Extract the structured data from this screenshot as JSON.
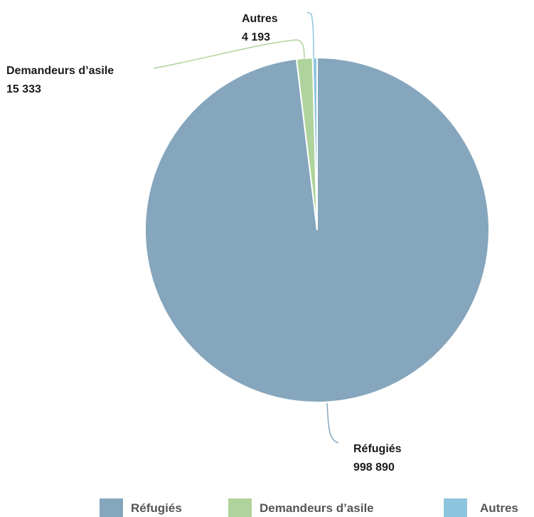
{
  "chart_data": {
    "type": "pie",
    "categories": [
      "Réfugiés",
      "Demandeurs d’asile",
      "Autres"
    ],
    "values": [
      998890,
      15333,
      4193
    ],
    "value_labels": [
      "998 890",
      "15 333",
      "4 193"
    ],
    "colors": [
      "#85a6bc",
      "#afd39c",
      "#8ec5de"
    ],
    "legend": {
      "placement": "bottom",
      "entries": [
        "Réfugiés",
        "Demandeurs d’asile",
        "Autres"
      ]
    }
  }
}
